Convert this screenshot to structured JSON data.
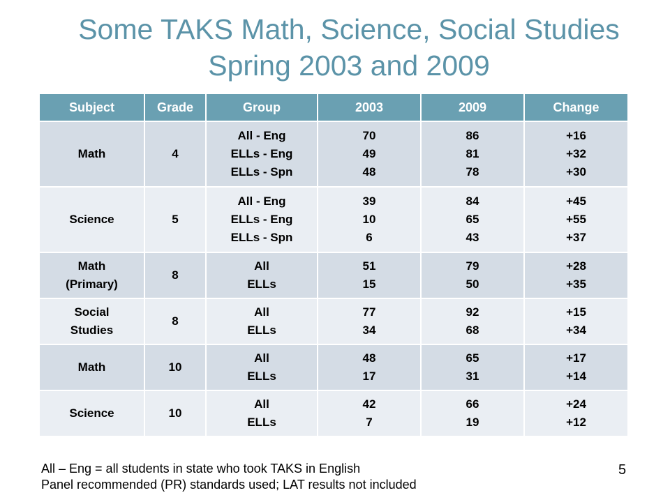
{
  "title": {
    "line1": "Some TAKS Math, Science, Social Studies",
    "line2": "Spring 2003 and 2009"
  },
  "table": {
    "headers": [
      "Subject",
      "Grade",
      "Group",
      "2003",
      "2009",
      "Change"
    ],
    "rows": [
      {
        "subject": "Math",
        "grade": "4",
        "group": "All - Eng\nELLs - Eng\nELLs - Spn",
        "y2003": "70\n49\n48",
        "y2009": "86\n81\n78",
        "change": "+16\n+32\n+30"
      },
      {
        "subject": "Science",
        "grade": "5",
        "group": "All - Eng\nELLs - Eng\nELLs - Spn",
        "y2003": "39\n10\n6",
        "y2009": "84\n65\n43",
        "change": "+45\n+55\n+37"
      },
      {
        "subject": "Math\n(Primary)",
        "grade": "8",
        "group": "All\nELLs",
        "y2003": "51\n15",
        "y2009": "79\n50",
        "change": "+28\n+35"
      },
      {
        "subject": "Social\nStudies",
        "grade": "8",
        "group": "All\nELLs",
        "y2003": "77\n34",
        "y2009": "92\n68",
        "change": "+15\n+34"
      },
      {
        "subject": "Math",
        "grade": "10",
        "group": "All\nELLs",
        "y2003": "48\n17",
        "y2009": "65\n31",
        "change": "+17\n+14"
      },
      {
        "subject": "Science",
        "grade": "10",
        "group": "All\nELLs",
        "y2003": "42\n7",
        "y2009": "66\n19",
        "change": "+24\n+12"
      }
    ]
  },
  "footnotes": {
    "line1": "All – Eng = all students in state who took TAKS in English",
    "line2": "Panel recommended (PR) standards used; LAT results not included"
  },
  "slide_number": "5",
  "colors": {
    "title": "#5b93a8",
    "header_bg": "#6aa0b2",
    "row_dark": "#d4dce5",
    "row_light": "#eaeef3"
  }
}
